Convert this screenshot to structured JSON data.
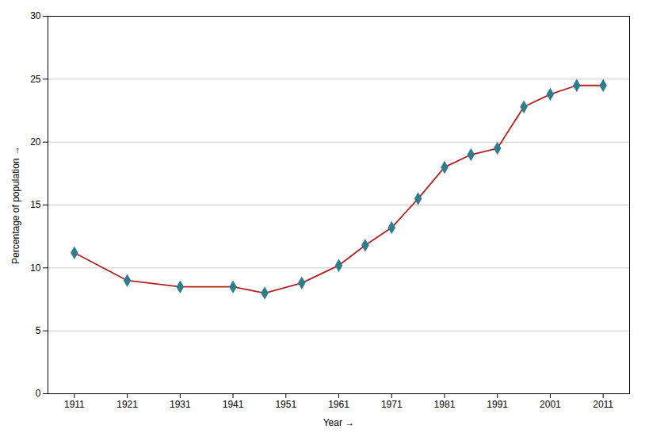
{
  "chart_data": {
    "type": "line",
    "x": [
      1911,
      1921,
      1931,
      1941,
      1947,
      1954,
      1961,
      1966,
      1971,
      1976,
      1981,
      1986,
      1991,
      1996,
      2001,
      2006,
      2011
    ],
    "values": [
      11.2,
      9.0,
      8.5,
      8.5,
      8.0,
      8.8,
      10.2,
      11.8,
      13.2,
      15.5,
      18.0,
      19.0,
      19.5,
      22.8,
      23.8,
      24.5,
      24.5
    ],
    "color": "#b22222",
    "marker": "diamond",
    "marker_color": "#2e7d8c",
    "xlabel": "Year",
    "ylabel": "Percentage of population",
    "xlim": [
      1906,
      2016
    ],
    "ylim": [
      0,
      30
    ],
    "xticks": [
      1911,
      1921,
      1931,
      1941,
      1951,
      1961,
      1971,
      1981,
      1991,
      2001,
      2011
    ],
    "yticks": [
      0,
      5,
      10,
      15,
      20,
      25,
      30
    ],
    "grid": "y"
  }
}
